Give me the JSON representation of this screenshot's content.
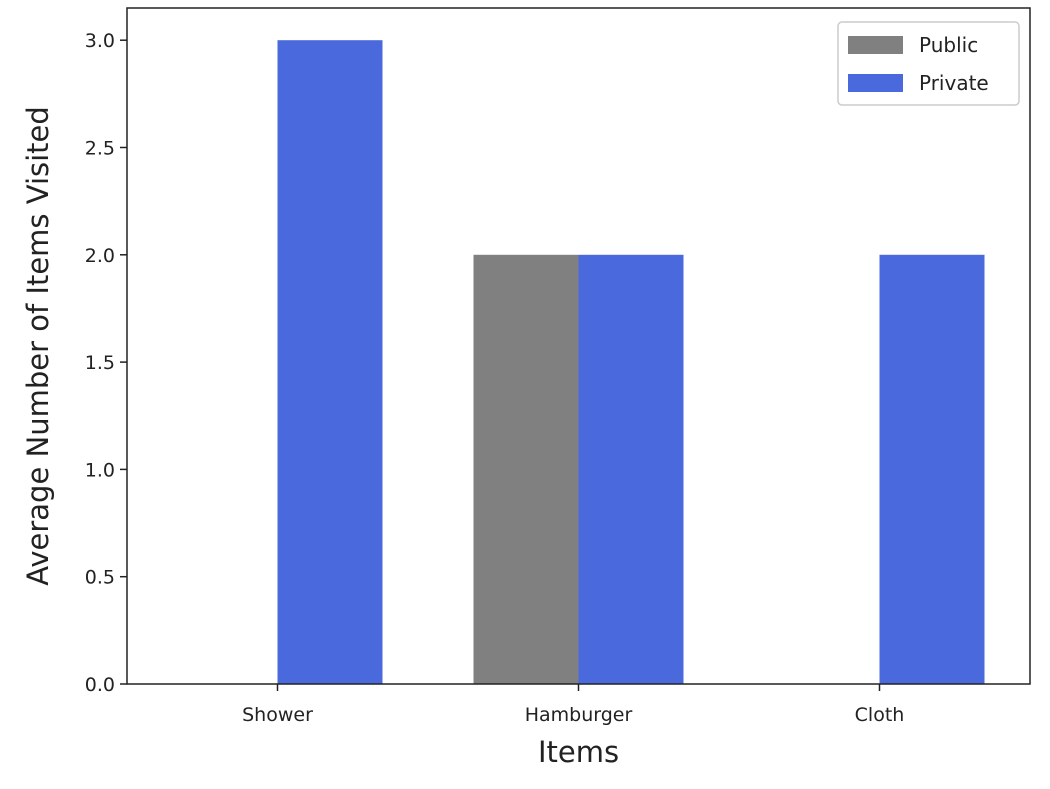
{
  "chart_data": {
    "type": "bar",
    "categories": [
      "Shower",
      "Hamburger",
      "Cloth"
    ],
    "series": [
      {
        "name": "Public",
        "values": [
          0,
          2,
          0
        ],
        "color": "#808080"
      },
      {
        "name": "Private",
        "values": [
          3,
          2,
          2
        ],
        "color": "#4a69dc"
      }
    ],
    "title": "",
    "xlabel": "Items",
    "ylabel": "Average Number of Items Visited",
    "ylim": [
      0,
      3.15
    ],
    "yticks": [
      "0.0",
      "0.5",
      "1.0",
      "1.5",
      "2.0",
      "2.5",
      "3.0"
    ],
    "grid": false,
    "legend": "top-right"
  }
}
